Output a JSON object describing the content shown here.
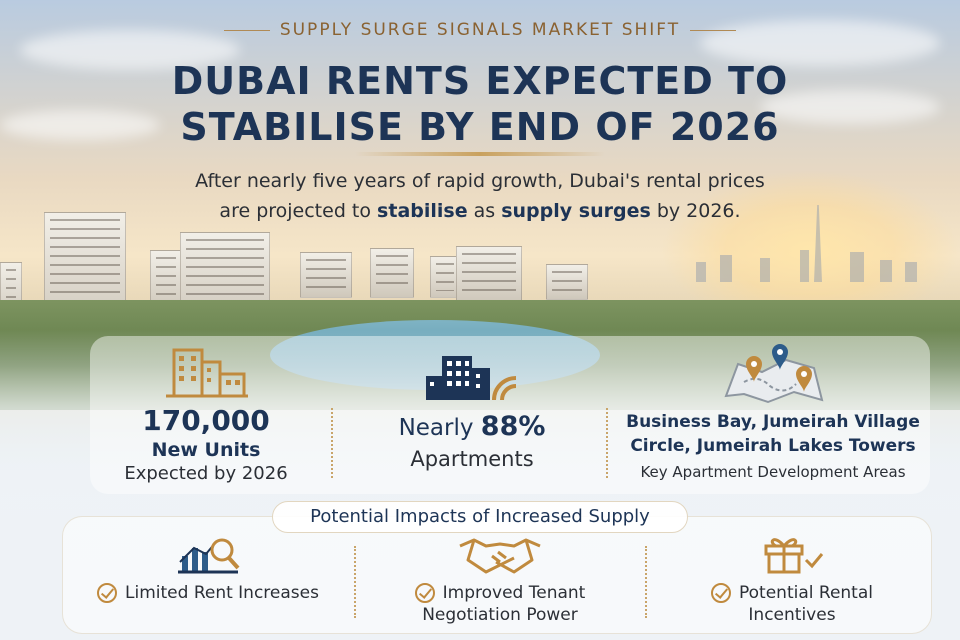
{
  "header": {
    "kicker": "SUPPLY SURGE SIGNALS MARKET SHIFT",
    "title_line1": "DUBAI RENTS EXPECTED TO",
    "title_line2": "STABILISE BY END OF 2026",
    "subtitle_line1": "After nearly five years of rapid growth, Dubai's rental prices",
    "subtitle_line2_pre": "are projected to ",
    "subtitle_line2_em1": "stabilise",
    "subtitle_line2_mid": " as ",
    "subtitle_line2_em2": "supply surges",
    "subtitle_line2_post": " by 2026."
  },
  "stats": [
    {
      "icon": "buildings-icon",
      "big": "170,000",
      "strong": "New Units",
      "small": "Expected by 2026"
    },
    {
      "icon": "apartment-icon",
      "prefix": "Nearly ",
      "big": "88%",
      "small": "Apartments"
    },
    {
      "icon": "map-pins-icon",
      "strong_line1": "Business Bay, Jumeirah Village",
      "strong_line2": "Circle, Jumeirah Lakes Towers",
      "small": "Key Apartment Development Areas"
    }
  ],
  "impacts": {
    "title": "Potential Impacts of Increased Supply",
    "items": [
      {
        "icon": "chart-magnifier-icon",
        "line1": "Limited Rent Increases",
        "line2": ""
      },
      {
        "icon": "handshake-icon",
        "line1": "Improved Tenant",
        "line2": "Negotiation Power"
      },
      {
        "icon": "gift-icon",
        "line1": "Potential Rental",
        "line2": "Incentives"
      }
    ]
  },
  "colors": {
    "navy": "#1d3456",
    "gold": "#c08a3e",
    "text": "#2b2f36"
  }
}
